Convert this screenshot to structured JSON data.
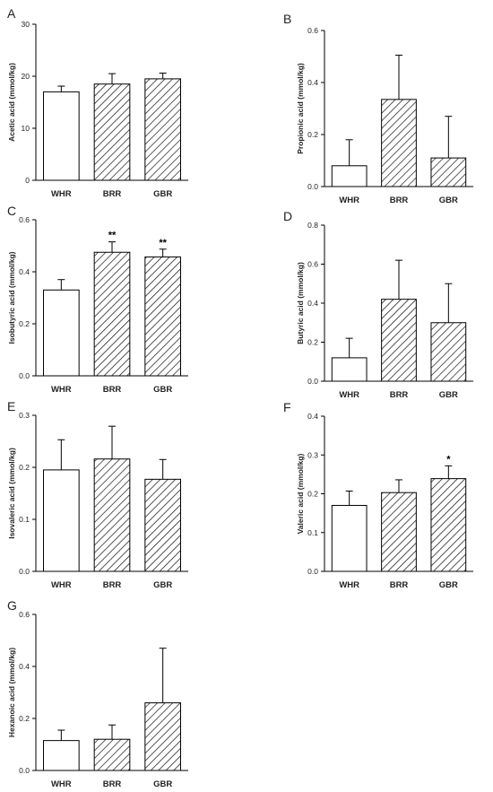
{
  "colors": {
    "axis": "#000000",
    "bar_edge": "#000000",
    "hatch": "#000000",
    "background": "#ffffff"
  },
  "chart_data": [
    {
      "panel": "A",
      "type": "bar",
      "categories": [
        "WHR",
        "BRR",
        "GBR"
      ],
      "values": [
        17.0,
        18.5,
        19.5
      ],
      "errors": [
        1.1,
        2.0,
        1.1
      ],
      "ylabel": "Acetic acid (mmol/kg)",
      "ylim": [
        0,
        30
      ],
      "yticks": [
        0,
        10,
        20,
        30
      ],
      "fills": [
        "open",
        "hatch",
        "hatch"
      ],
      "significance": [
        "",
        "",
        ""
      ]
    },
    {
      "panel": "B",
      "type": "bar",
      "categories": [
        "WHR",
        "BRR",
        "GBR"
      ],
      "values": [
        0.08,
        0.335,
        0.11
      ],
      "errors": [
        0.1,
        0.17,
        0.16
      ],
      "ylabel": "Propionic acid (mmol/kg)",
      "ylim": [
        0,
        0.6
      ],
      "yticks": [
        0.0,
        0.2,
        0.4,
        0.6
      ],
      "fills": [
        "open",
        "hatch",
        "hatch"
      ],
      "significance": [
        "",
        "",
        ""
      ]
    },
    {
      "panel": "C",
      "type": "bar",
      "categories": [
        "WHR",
        "BRR",
        "GBR"
      ],
      "values": [
        0.33,
        0.475,
        0.457
      ],
      "errors": [
        0.04,
        0.04,
        0.03
      ],
      "ylabel": "Isobutyric acid (mmol/kg)",
      "ylim": [
        0,
        0.6
      ],
      "yticks": [
        0.0,
        0.2,
        0.4,
        0.6
      ],
      "fills": [
        "open",
        "hatch",
        "hatch"
      ],
      "significance": [
        "",
        "**",
        "**"
      ]
    },
    {
      "panel": "D",
      "type": "bar",
      "categories": [
        "WHR",
        "BRR",
        "GBR"
      ],
      "values": [
        0.12,
        0.42,
        0.3
      ],
      "errors": [
        0.1,
        0.2,
        0.2
      ],
      "ylabel": "Butyric acid (mmol/kg)",
      "ylim": [
        0,
        0.8
      ],
      "yticks": [
        0.0,
        0.2,
        0.4,
        0.6,
        0.8
      ],
      "fills": [
        "open",
        "hatch",
        "hatch"
      ],
      "significance": [
        "",
        "",
        ""
      ]
    },
    {
      "panel": "E",
      "type": "bar",
      "categories": [
        "WHR",
        "BRR",
        "GBR"
      ],
      "values": [
        0.195,
        0.216,
        0.177
      ],
      "errors": [
        0.058,
        0.063,
        0.038
      ],
      "ylabel": "Isovaleric acid (mmol/kg)",
      "ylim": [
        0,
        0.3
      ],
      "yticks": [
        0.0,
        0.1,
        0.2,
        0.3
      ],
      "fills": [
        "open",
        "hatch",
        "hatch"
      ],
      "significance": [
        "",
        "",
        ""
      ]
    },
    {
      "panel": "F",
      "type": "bar",
      "categories": [
        "WHR",
        "BRR",
        "GBR"
      ],
      "values": [
        0.17,
        0.203,
        0.239
      ],
      "errors": [
        0.037,
        0.033,
        0.033
      ],
      "ylabel": "Valeric acid (mmol/kg)",
      "ylim": [
        0,
        0.4
      ],
      "yticks": [
        0.0,
        0.1,
        0.2,
        0.3,
        0.4
      ],
      "fills": [
        "open",
        "hatch",
        "hatch"
      ],
      "significance": [
        "",
        "",
        "*"
      ]
    },
    {
      "panel": "G",
      "type": "bar",
      "categories": [
        "WHR",
        "BRR",
        "GBR"
      ],
      "values": [
        0.115,
        0.12,
        0.26
      ],
      "errors": [
        0.04,
        0.055,
        0.21
      ],
      "ylabel": "Hexanoic acid (mmol/kg)",
      "ylim": [
        0,
        0.6
      ],
      "yticks": [
        0.0,
        0.2,
        0.4,
        0.6
      ],
      "fills": [
        "open",
        "hatch",
        "hatch"
      ],
      "significance": [
        "",
        "",
        ""
      ]
    }
  ]
}
